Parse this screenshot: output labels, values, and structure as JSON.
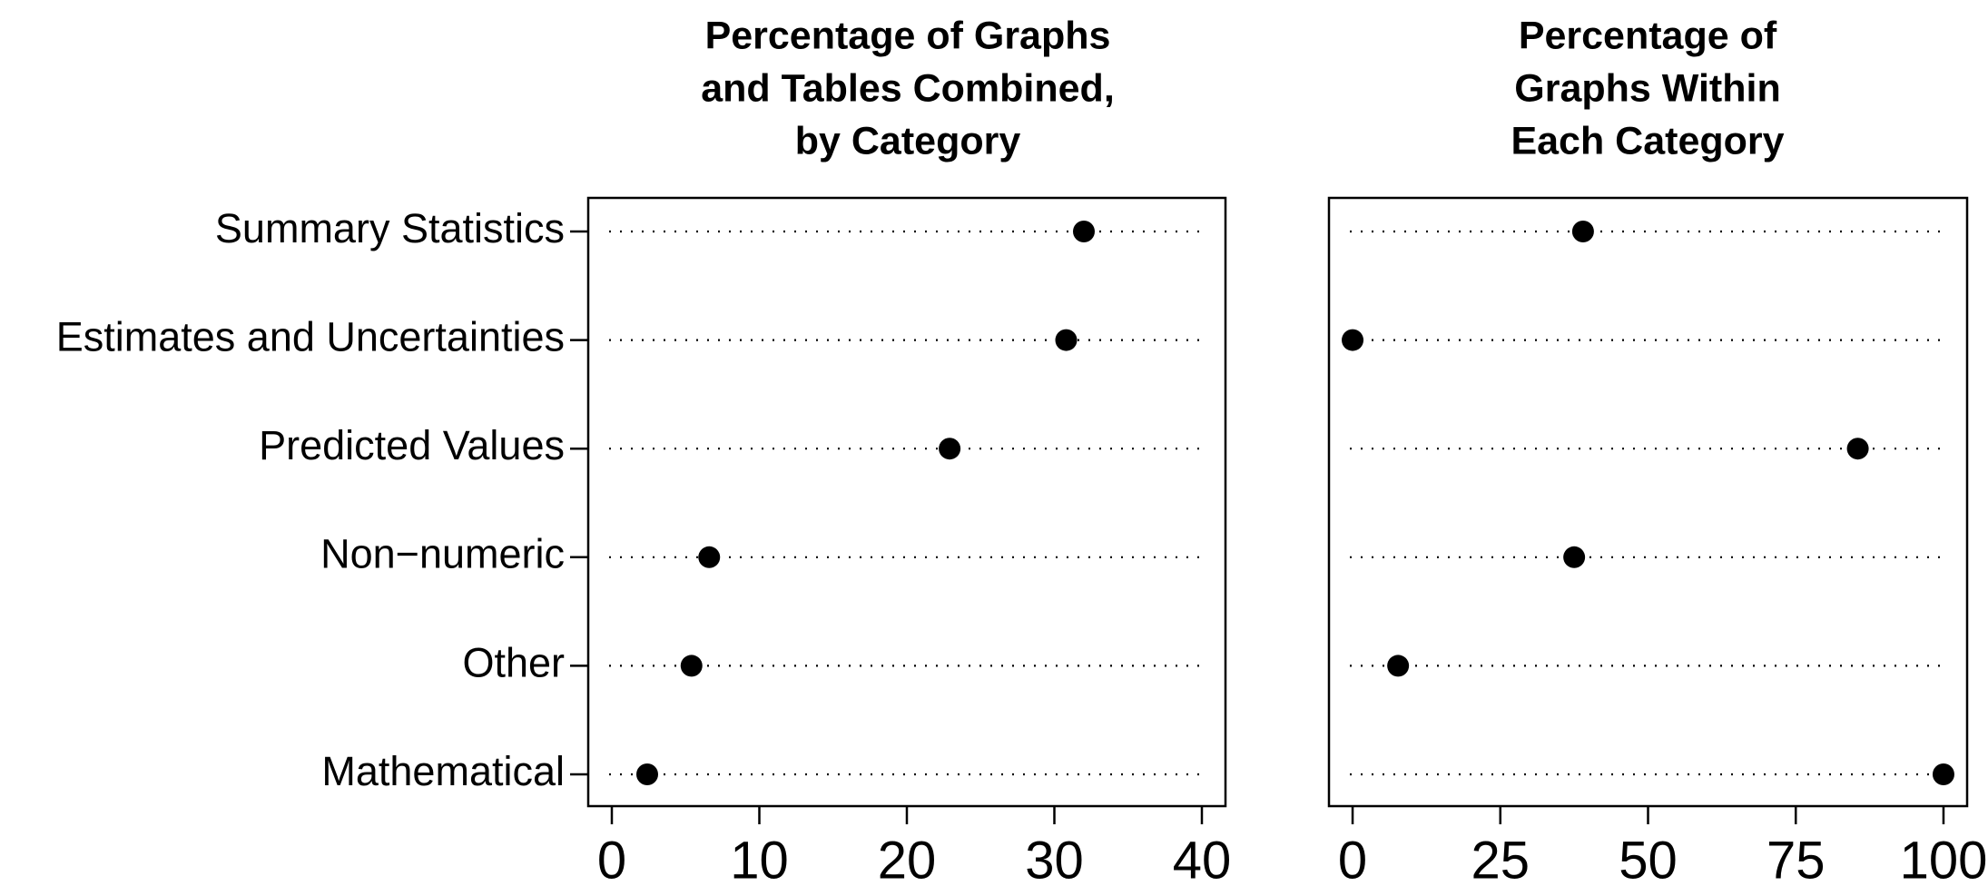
{
  "chart_data": [
    {
      "type": "dot",
      "title_lines": [
        "Percentage of Graphs",
        "and Tables Combined,",
        "by Category"
      ],
      "categories": [
        "Summary Statistics",
        "Estimates and Uncertainties",
        "Predicted Values",
        "Non−numeric",
        "Other",
        "Mathematical"
      ],
      "values": [
        32.0,
        30.8,
        22.9,
        6.6,
        5.4,
        2.4
      ],
      "xlim": [
        -1.6,
        41.6
      ],
      "xticks": [
        0,
        10,
        20,
        30,
        40
      ],
      "xtick_labels": [
        "0",
        "10",
        "20",
        "30",
        "40"
      ],
      "xlabel": "",
      "ylabel": "",
      "grid": "dotted guide line per category",
      "legend": "none"
    },
    {
      "type": "dot",
      "title_lines": [
        "Percentage of",
        "Graphs Within",
        "Each Category"
      ],
      "categories": [
        "Summary Statistics",
        "Estimates and Uncertainties",
        "Predicted Values",
        "Non−numeric",
        "Other",
        "Mathematical"
      ],
      "values": [
        39,
        0,
        85.5,
        37.5,
        7.7,
        100
      ],
      "xlim": [
        -4,
        104
      ],
      "xticks": [
        0,
        25,
        50,
        75,
        100
      ],
      "xtick_labels": [
        "0",
        "25",
        "50",
        "75",
        "100"
      ],
      "xlabel": "",
      "ylabel": "",
      "grid": "dotted guide line per category",
      "legend": "none"
    }
  ],
  "colors": {
    "points": "#000000",
    "axes": "#000000",
    "background": "#ffffff"
  }
}
